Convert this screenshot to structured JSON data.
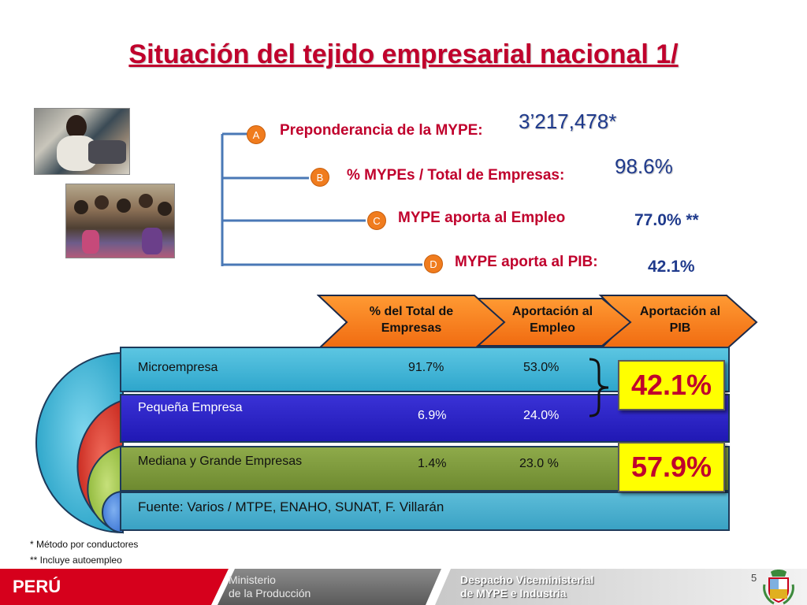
{
  "title": "Situación del tejido empresarial nacional 1/",
  "items": [
    {
      "badge": "A",
      "label": "Preponderancia de la MYPE:",
      "value": "3’217,478*"
    },
    {
      "badge": "B",
      "label": "% MYPEs / Total de Empresas:",
      "value": "98.6%"
    },
    {
      "badge": "C",
      "label": "MYPE aporta al Empleo",
      "value": "77.0% **"
    },
    {
      "badge": "D",
      "label": "MYPE aporta al PIB:",
      "value": "42.1%"
    }
  ],
  "table": {
    "headers": [
      "% del Total de Empresas",
      "Aportación al Empleo",
      "Aportación al PIB"
    ],
    "rows": [
      {
        "name": "Microempresa",
        "pct_total": "91.7%",
        "empleo": "53.0%"
      },
      {
        "name": "Pequeña Empresa",
        "pct_total": "6.9%",
        "empleo": "24.0%"
      },
      {
        "name": "Mediana y Grande Empresas",
        "pct_total": "1.4%",
        "empleo": "23.0 %"
      }
    ],
    "source": "Fuente: Varios / MTPE, ENAHO, SUNAT, F. Villarán",
    "pib_mype": "42.1%",
    "pib_mediana_grande": "57.9%"
  },
  "footnotes": [
    "* Método por conductores",
    "** Incluye autoempleo"
  ],
  "footer": {
    "country": "PERÚ",
    "ministry_line1": "Ministerio",
    "ministry_line2": "de la Producción",
    "office_line1": "Despacho Viceministerial",
    "office_line2": "de MYPE e Industria",
    "page_number": "5"
  },
  "colors": {
    "title_red": "#c0002c",
    "value_blue": "#1f3a8c",
    "badge_orange": "#f07c1e",
    "band_cyan": "#3fb6d6",
    "band_blue": "#2a22c4",
    "band_olive": "#7e9a3c",
    "highlight_yellow": "#ffff00",
    "footer_red": "#d6001c"
  }
}
